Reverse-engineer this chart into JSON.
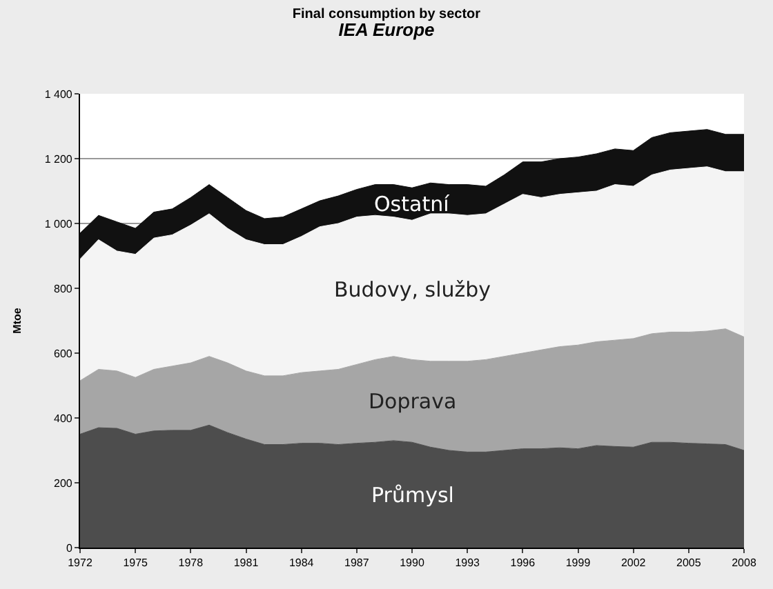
{
  "chart_data": {
    "type": "area",
    "stacked": true,
    "title": "Final consumption by sector",
    "subtitle": "IEA Europe",
    "ylabel": "Mtoe",
    "x": [
      1972,
      1973,
      1974,
      1975,
      1976,
      1977,
      1978,
      1979,
      1980,
      1981,
      1982,
      1983,
      1984,
      1985,
      1986,
      1987,
      1988,
      1989,
      1990,
      1991,
      1992,
      1993,
      1994,
      1995,
      1996,
      1997,
      1998,
      1999,
      2000,
      2001,
      2002,
      2003,
      2004,
      2005,
      2006,
      2007,
      2008
    ],
    "series": [
      {
        "name": "Průmysl",
        "color": "#4d4d4d",
        "values": [
          350,
          370,
          368,
          350,
          360,
          362,
          362,
          378,
          355,
          335,
          318,
          318,
          322,
          322,
          318,
          322,
          325,
          330,
          325,
          310,
          300,
          295,
          295,
          300,
          305,
          305,
          308,
          305,
          315,
          312,
          310,
          325,
          325,
          322,
          320,
          318,
          300
        ]
      },
      {
        "name": "Doprava",
        "color": "#a6a6a6",
        "values": [
          165,
          180,
          177,
          175,
          190,
          198,
          208,
          212,
          215,
          210,
          212,
          212,
          218,
          223,
          232,
          243,
          255,
          260,
          255,
          265,
          275,
          280,
          285,
          290,
          295,
          305,
          312,
          320,
          320,
          328,
          335,
          335,
          340,
          343,
          348,
          357,
          350
        ]
      },
      {
        "name": "Budovy, služby",
        "color": "#f4f4f4",
        "values": [
          375,
          400,
          370,
          380,
          405,
          405,
          425,
          440,
          415,
          405,
          405,
          405,
          420,
          445,
          450,
          455,
          445,
          430,
          430,
          455,
          455,
          450,
          450,
          470,
          490,
          470,
          470,
          470,
          465,
          480,
          470,
          490,
          500,
          505,
          507,
          485,
          510
        ]
      },
      {
        "name": "Ostatní",
        "color": "#111111",
        "values": [
          80,
          75,
          90,
          80,
          80,
          80,
          85,
          90,
          95,
          90,
          80,
          85,
          85,
          80,
          85,
          85,
          95,
          100,
          100,
          95,
          90,
          95,
          85,
          90,
          100,
          110,
          110,
          110,
          115,
          110,
          110,
          115,
          115,
          115,
          115,
          115,
          115
        ]
      }
    ],
    "xlim": [
      1972,
      2008
    ],
    "xticks": [
      1972,
      1975,
      1978,
      1981,
      1984,
      1987,
      1990,
      1993,
      1996,
      1999,
      2002,
      2005,
      2008
    ],
    "ylim": [
      0,
      1400
    ],
    "yticks": [
      0,
      200,
      400,
      600,
      800,
      {
        "value": 1000,
        "label": "1 000"
      },
      {
        "value": 1200,
        "label": "1 200"
      },
      {
        "value": 1400,
        "label": "1 400"
      }
    ],
    "grid": "y",
    "legend": false
  }
}
